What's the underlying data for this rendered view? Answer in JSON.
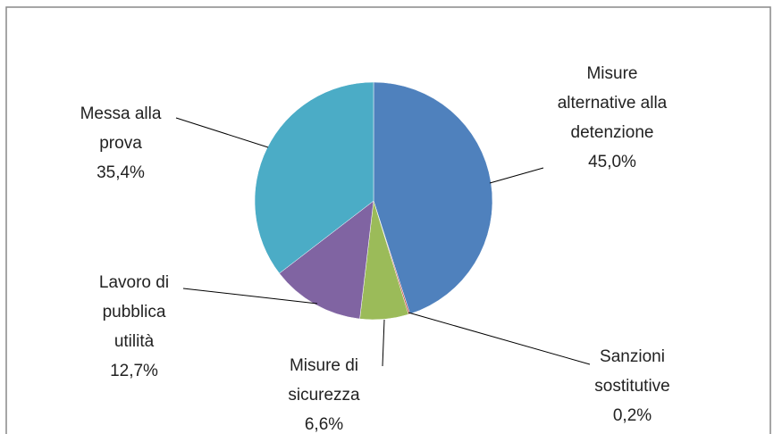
{
  "chart_data": {
    "type": "pie",
    "categories": [
      "Misure alternative alla detenzione",
      "Sanzioni sostitutive",
      "Misure di sicurezza",
      "Lavoro di pubblica utilità",
      "Messa alla prova"
    ],
    "values": [
      45.0,
      0.2,
      6.6,
      12.7,
      35.4
    ],
    "value_labels": [
      "45,0%",
      "0,2%",
      "6,6%",
      "12,7%",
      "35,4%"
    ],
    "colors": [
      "#4f81bd",
      "#c0504d",
      "#9bbb59",
      "#8064a2",
      "#4bacc6"
    ]
  }
}
